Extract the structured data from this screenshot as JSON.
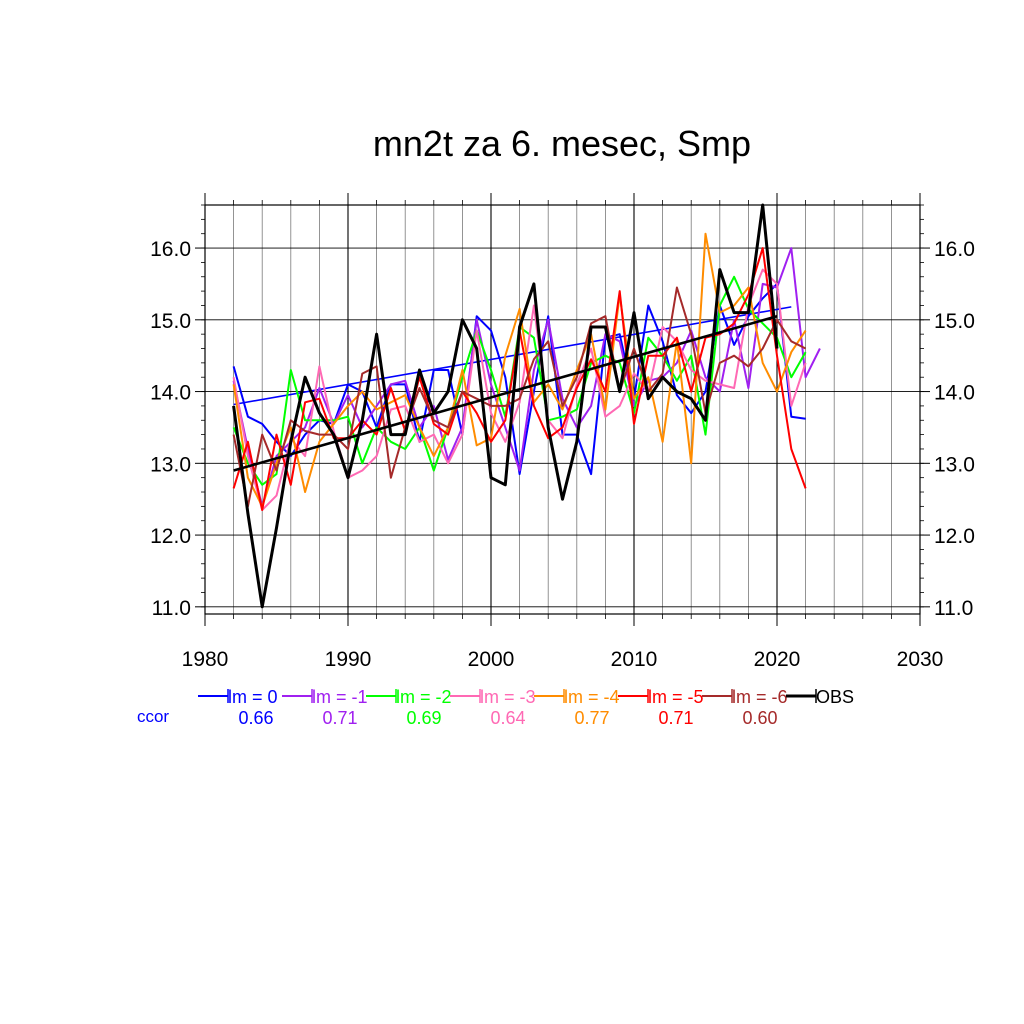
{
  "chart_data": {
    "type": "line",
    "title": "mn2t za 6. mesec, Smp",
    "xlabel": "",
    "ylabel": "",
    "xlim": [
      1980,
      2030
    ],
    "ylim": [
      10.9,
      16.6
    ],
    "xticks": [
      1980,
      1990,
      2000,
      2010,
      2020,
      2030
    ],
    "xtick_labels": [
      "1980",
      "1990",
      "2000",
      "2010",
      "2020",
      "2030"
    ],
    "yticks": [
      11.0,
      12.0,
      13.0,
      14.0,
      15.0,
      16.0
    ],
    "ytick_labels": [
      "11.0",
      "12.0",
      "13.0",
      "14.0",
      "15.0",
      "16.0"
    ],
    "grid": true,
    "legend_position": "bottom",
    "ccor_label": "ccor",
    "ccor_color": "#0000ff",
    "series": [
      {
        "name": "lm = 0",
        "color": "#0000ff",
        "ccor": "0.66",
        "start": 1982,
        "values": [
          14.35,
          13.65,
          13.55,
          13.3,
          13.1,
          13.4,
          13.6,
          13.55,
          14.1,
          14.0,
          13.5,
          14.1,
          14.1,
          13.3,
          14.3,
          14.3,
          13.4,
          15.05,
          14.85,
          14.2,
          12.85,
          14.0,
          15.05,
          13.4,
          13.4,
          12.85,
          14.75,
          14.8,
          13.9,
          15.2,
          14.7,
          13.95,
          13.7,
          14.0,
          15.2,
          14.65,
          15.05,
          15.3,
          15.5,
          13.65,
          13.62
        ],
        "trend": [
          13.82,
          15.18
        ]
      },
      {
        "name": "lm = -1",
        "color": "#a020f0",
        "ccor": "0.71",
        "start": 1982,
        "values": [
          14.15,
          13.2,
          12.4,
          13.1,
          13.3,
          13.5,
          14.05,
          13.55,
          13.95,
          13.5,
          13.8,
          14.1,
          14.15,
          13.5,
          13.8,
          13.05,
          13.5,
          15.0,
          14.1,
          13.5,
          12.9,
          14.3,
          15.0,
          13.9,
          13.5,
          13.8,
          14.8,
          14.7,
          13.8,
          14.15,
          14.2,
          14.4,
          14.85,
          14.2,
          14.0,
          15.0,
          14.05,
          15.5,
          15.45,
          16.0,
          14.2,
          14.6
        ]
      },
      {
        "name": "lm = -2",
        "color": "#00ff00",
        "ccor": "0.69",
        "start": 1982,
        "values": [
          13.5,
          13.0,
          12.7,
          12.85,
          14.3,
          13.6,
          13.6,
          13.6,
          13.65,
          13.0,
          13.5,
          13.3,
          13.2,
          13.5,
          12.9,
          13.5,
          14.2,
          14.85,
          14.3,
          13.65,
          14.9,
          14.75,
          13.6,
          13.65,
          13.75,
          14.4,
          14.5,
          14.4,
          13.7,
          14.75,
          14.5,
          14.15,
          14.5,
          13.4,
          15.2,
          15.6,
          15.15,
          14.95,
          14.75,
          14.2,
          14.55
        ]
      },
      {
        "name": "lm = -3",
        "color": "#ff69b4",
        "ccor": "0.64",
        "start": 1982,
        "values": [
          14.2,
          13.1,
          12.35,
          12.55,
          13.35,
          13.1,
          14.35,
          13.45,
          12.8,
          12.9,
          13.1,
          13.75,
          13.8,
          13.3,
          13.4,
          13.0,
          13.4,
          14.85,
          13.7,
          13.3,
          13.85,
          15.2,
          13.6,
          13.35,
          14.1,
          14.6,
          13.65,
          13.8,
          14.25,
          14.0,
          14.9,
          14.7,
          14.3,
          14.15,
          14.1,
          14.05,
          15.2,
          15.7,
          15.5,
          13.8,
          14.4
        ]
      },
      {
        "name": "lm = -4",
        "color": "#ff8c00",
        "ccor": "0.77",
        "start": 1982,
        "values": [
          14.1,
          12.8,
          12.4,
          13.0,
          13.5,
          12.6,
          13.3,
          13.55,
          13.8,
          14.0,
          13.75,
          13.85,
          13.95,
          13.5,
          13.1,
          13.5,
          14.3,
          13.25,
          13.35,
          14.5,
          15.15,
          13.85,
          14.1,
          13.75,
          14.3,
          14.8,
          13.75,
          15.35,
          13.9,
          14.2,
          13.3,
          14.7,
          13.0,
          16.2,
          15.1,
          15.2,
          15.45,
          14.4,
          14.0,
          14.55,
          14.85
        ]
      },
      {
        "name": "lm = -5",
        "color": "#ff0000",
        "ccor": "0.71",
        "start": 1982,
        "values": [
          12.65,
          13.3,
          12.35,
          13.4,
          12.7,
          13.85,
          13.9,
          13.35,
          13.35,
          13.6,
          13.4,
          14.05,
          13.45,
          14.2,
          13.55,
          13.4,
          14.0,
          13.7,
          13.3,
          13.6,
          14.85,
          13.8,
          13.35,
          13.5,
          14.05,
          14.45,
          14.0,
          15.4,
          13.55,
          14.5,
          14.5,
          14.75,
          14.0,
          14.75,
          14.8,
          14.95,
          15.35,
          16.0,
          14.5,
          13.2,
          12.65
        ]
      },
      {
        "name": "lm = -6",
        "color": "#a52a2a",
        "ccor": "0.60",
        "start": 1982,
        "values": [
          13.4,
          12.4,
          13.4,
          12.9,
          13.6,
          13.45,
          13.4,
          13.4,
          13.2,
          14.25,
          14.35,
          12.8,
          13.5,
          14.05,
          13.6,
          13.5,
          14.0,
          13.9,
          13.8,
          13.8,
          13.9,
          14.45,
          14.7,
          13.8,
          14.2,
          14.95,
          15.05,
          14.0,
          14.6,
          14.0,
          14.25,
          15.45,
          14.8,
          13.7,
          14.4,
          14.5,
          14.35,
          14.6,
          15.0,
          14.7,
          14.6
        ]
      },
      {
        "name": "OBS",
        "color": "#000000",
        "ccor": "",
        "start": 1982,
        "values": [
          13.8,
          12.3,
          11.0,
          12.1,
          13.3,
          14.2,
          13.7,
          13.4,
          12.8,
          13.6,
          14.8,
          13.4,
          13.4,
          14.3,
          13.7,
          14.0,
          15.0,
          14.6,
          12.8,
          12.7,
          14.9,
          15.5,
          13.5,
          12.5,
          13.3,
          14.9,
          14.9,
          14.0,
          15.1,
          13.9,
          14.2,
          14.0,
          13.9,
          13.6,
          15.7,
          15.1,
          15.1,
          16.6,
          14.6
        ],
        "trend": [
          12.9,
          15.05
        ]
      }
    ]
  }
}
